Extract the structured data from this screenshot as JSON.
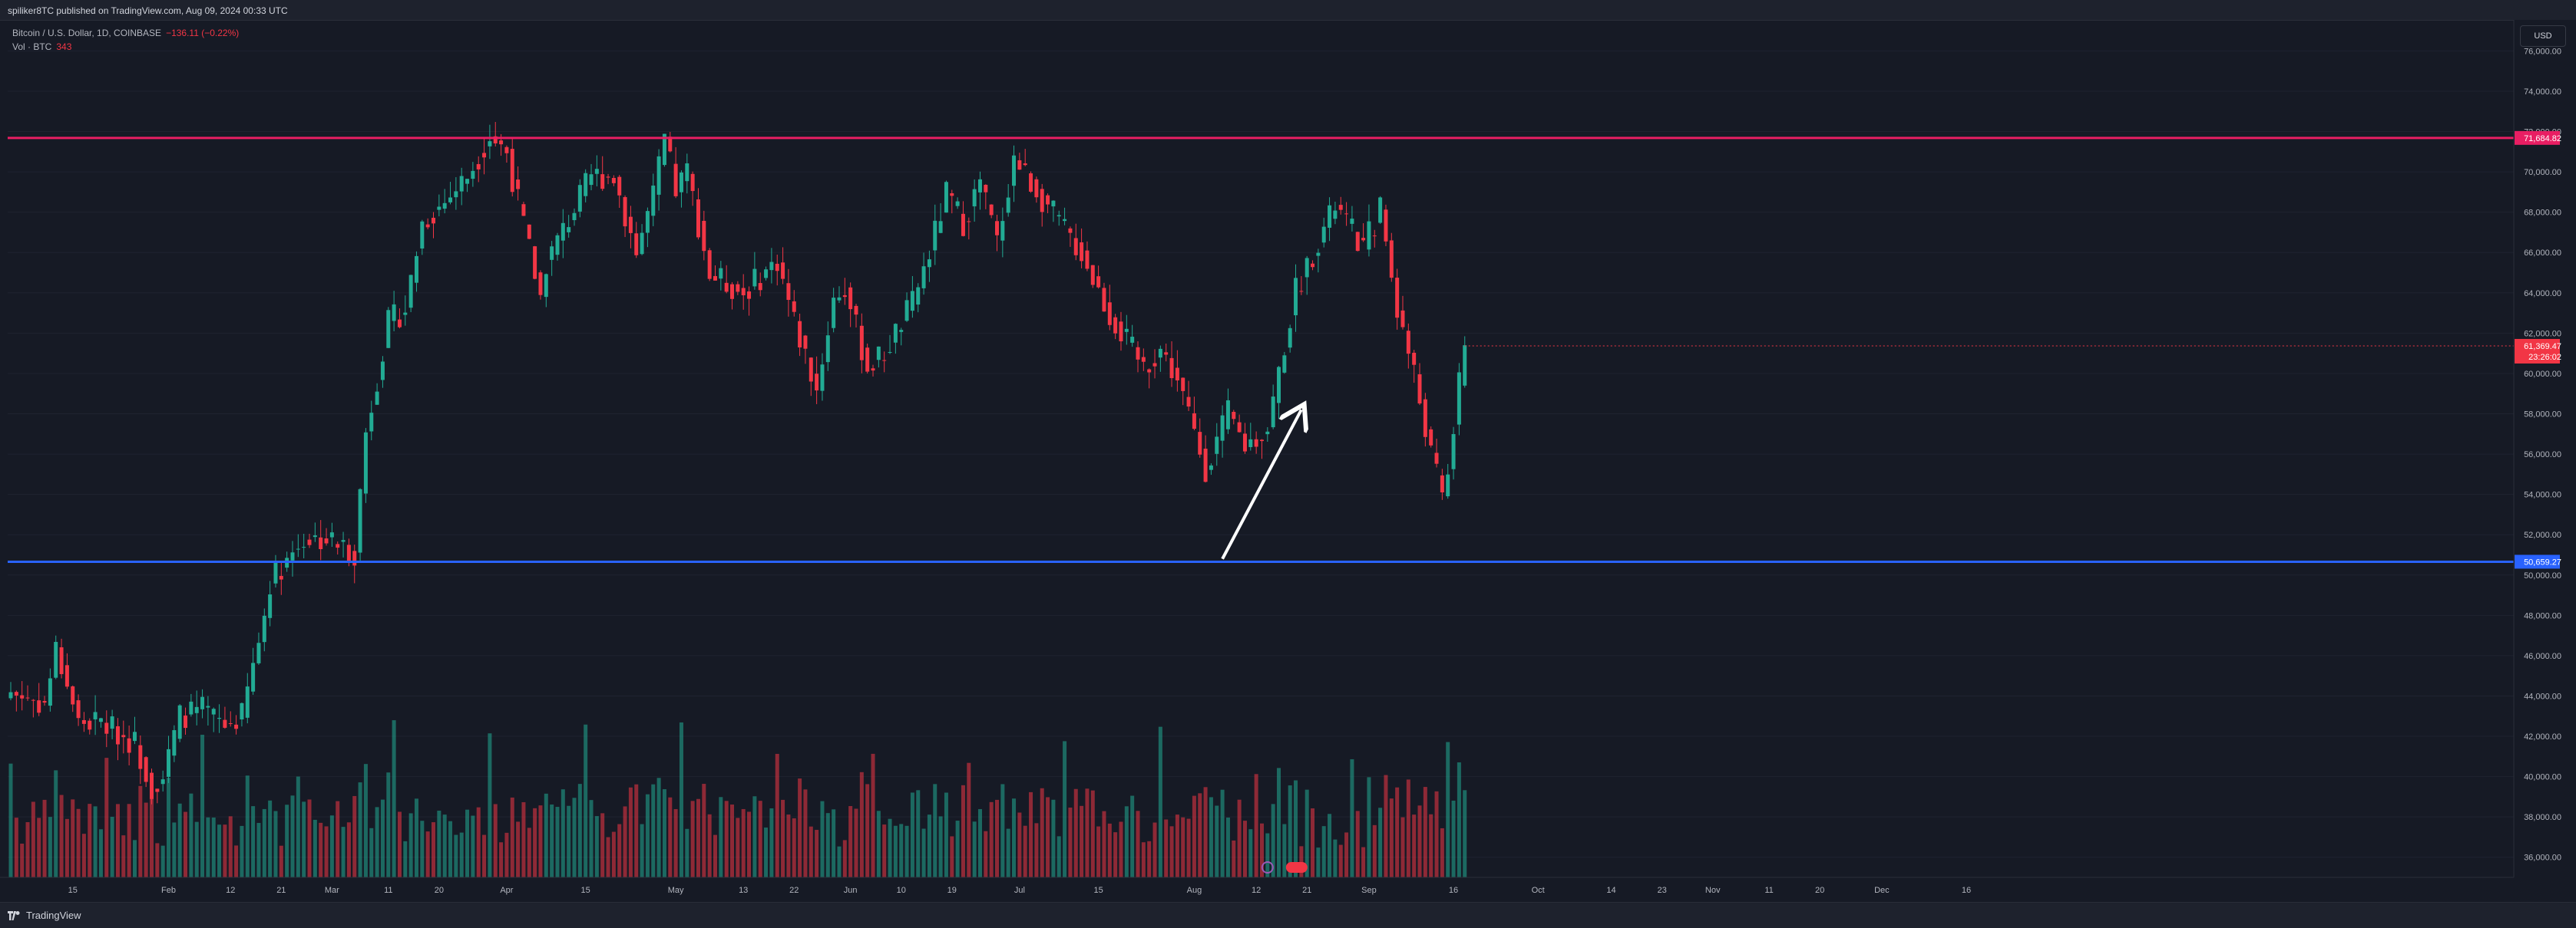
{
  "header": {
    "publish_text": "spiliker8TC published on TradingView.com, Aug 09, 2024 00:33 UTC"
  },
  "legend": {
    "symbol_text": "Bitcoin / U.S. Dollar, 1D, COINBASE",
    "change_text": "−136.11 (−0.22%)",
    "vol_label": "Vol · BTC",
    "vol_value": "343"
  },
  "currency_button": "USD",
  "footer": {
    "brand": "TradingView"
  },
  "colors": {
    "up": "#22ab94",
    "down": "#f23645",
    "resistance": "#e91e63",
    "support": "#2962ff",
    "arrow": "#ffffff"
  },
  "chart_data": {
    "type": "candlestick",
    "price_axis": {
      "ticks": [
        "76,000.00",
        "74,000.00",
        "72,000.00",
        "70,000.00",
        "68,000.00",
        "66,000.00",
        "64,000.00",
        "62,000.00",
        "60,000.00",
        "58,000.00",
        "56,000.00",
        "54,000.00",
        "52,000.00",
        "50,000.00",
        "48,000.00",
        "46,000.00",
        "44,000.00",
        "42,000.00",
        "40,000.00",
        "38,000.00",
        "36,000.00"
      ],
      "range": [
        35000,
        77500
      ]
    },
    "time_axis": {
      "labels": [
        "15",
        "Feb",
        "12",
        "21",
        "Mar",
        "11",
        "20",
        "Apr",
        "15",
        "May",
        "13",
        "22",
        "Jun",
        "10",
        "19",
        "Jul",
        "15",
        "Aug",
        "12",
        "21",
        "Sep",
        "16",
        "Oct",
        "14",
        "23",
        "Nov",
        "11",
        "20",
        "Dec",
        "16"
      ]
    },
    "horizontal_lines": [
      {
        "name": "resistance",
        "price": 71684.82,
        "label": "71,684.82"
      },
      {
        "name": "support",
        "price": 50659.27,
        "label": "50,659.27"
      }
    ],
    "last_price": {
      "price": 61369.47,
      "label": "61,369.47",
      "countdown": "23:26:02"
    },
    "arrow": {
      "from": {
        "date": "2024-08-06",
        "price": 50800
      },
      "to": {
        "date": "2024-08-20",
        "price": 58200
      }
    },
    "series": [
      {
        "name": "price",
        "start_date": "2024-01-04",
        "anchors": [
          [
            0,
            44200
          ],
          [
            6,
            43600
          ],
          [
            8,
            46300
          ],
          [
            10,
            44600
          ],
          [
            12,
            42700
          ],
          [
            16,
            42700
          ],
          [
            20,
            42000
          ],
          [
            22,
            41700
          ],
          [
            25,
            39500
          ],
          [
            27,
            40000
          ],
          [
            30,
            43000
          ],
          [
            34,
            43300
          ],
          [
            38,
            42500
          ],
          [
            41,
            43000
          ],
          [
            45,
            48000
          ],
          [
            46,
            49700
          ],
          [
            49,
            50800
          ],
          [
            52,
            51800
          ],
          [
            56,
            51800
          ],
          [
            61,
            51100
          ],
          [
            63,
            57100
          ],
          [
            67,
            62500
          ],
          [
            70,
            63200
          ],
          [
            73,
            67500
          ],
          [
            77,
            68500
          ],
          [
            81,
            69800
          ],
          [
            85,
            71800
          ],
          [
            88,
            71000
          ],
          [
            89,
            69700
          ],
          [
            94,
            63800
          ],
          [
            95,
            65500
          ],
          [
            98,
            67100
          ],
          [
            103,
            69800
          ],
          [
            107,
            69800
          ],
          [
            111,
            66000
          ],
          [
            114,
            68800
          ],
          [
            116,
            71600
          ],
          [
            118,
            69100
          ],
          [
            120,
            70000
          ],
          [
            124,
            64900
          ],
          [
            130,
            64000
          ],
          [
            136,
            65600
          ],
          [
            139,
            62600
          ],
          [
            143,
            59200
          ],
          [
            146,
            63700
          ],
          [
            148,
            64200
          ],
          [
            152,
            60300
          ],
          [
            155,
            61000
          ],
          [
            160,
            63500
          ],
          [
            163,
            66000
          ],
          [
            166,
            68900
          ],
          [
            169,
            67500
          ],
          [
            172,
            69500
          ],
          [
            175,
            66500
          ],
          [
            178,
            70700
          ],
          [
            181,
            69500
          ],
          [
            186,
            67500
          ],
          [
            190,
            66000
          ],
          [
            195,
            62900
          ],
          [
            201,
            60300
          ],
          [
            204,
            61200
          ],
          [
            207,
            59700
          ],
          [
            212,
            55300
          ],
          [
            216,
            58000
          ],
          [
            219,
            56400
          ],
          [
            223,
            57300
          ],
          [
            228,
            64100
          ],
          [
            232,
            66600
          ],
          [
            235,
            68300
          ],
          [
            240,
            66200
          ],
          [
            243,
            68200
          ],
          [
            246,
            63200
          ],
          [
            249,
            60000
          ],
          [
            252,
            56000
          ],
          [
            254,
            53900
          ],
          [
            255,
            55300
          ],
          [
            258,
            61400
          ]
        ]
      }
    ]
  }
}
